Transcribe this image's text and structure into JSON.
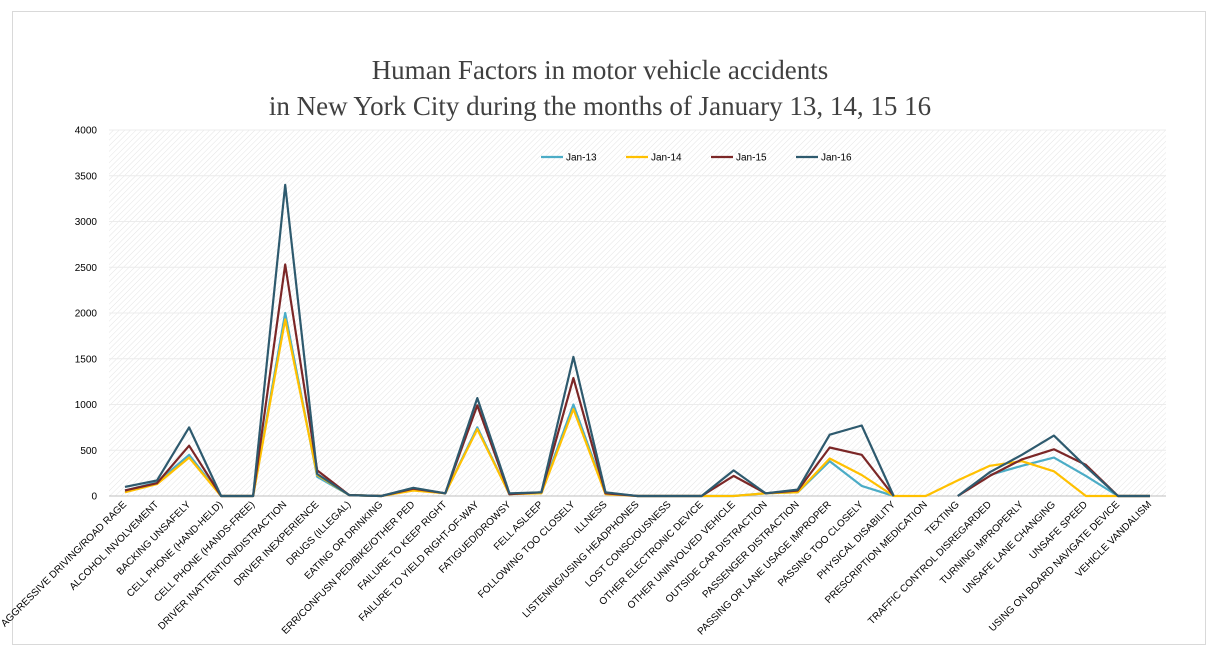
{
  "chart_data": {
    "type": "line",
    "title": [
      "Human Factors in motor vehicle accidents",
      "in New York City during the months of January 13, 14, 15 16"
    ],
    "ylim": [
      0,
      4000
    ],
    "yticks": [
      0,
      500,
      1000,
      1500,
      2000,
      2500,
      3000,
      3500,
      4000
    ],
    "grid": true,
    "legend": "top-center",
    "categories": [
      "AGGRESSIVE DRIVING/ROAD RAGE",
      "ALCOHOL INVOLVEMENT",
      "BACKING UNSAFELY",
      "CELL PHONE (HAND-HELD)",
      "CELL PHONE (HANDS-FREE)",
      "DRIVER INATTENTION/DISTRACTION",
      "DRIVER INEXPERIENCE",
      "DRUGS (ILLEGAL)",
      "EATING OR DRINKING",
      "ERR/CONFUSN PED/BIKE/OTHER PED",
      "FAILURE TO KEEP RIGHT",
      "FAILURE TO YIELD RIGHT-OF-WAY",
      "FATIGUED/DROWSY",
      "FELL ASLEEP",
      "FOLLOWING TOO CLOSELY",
      "ILLNESS",
      "LISTENING/USING HEADPHONES",
      "LOST CONSCIOUSNESS",
      "OTHER ELECTRONIC DEVICE",
      "OTHER UNINVOLVED VEHICLE",
      "OUTSIDE CAR DISTRACTION",
      "PASSENGER DISTRACTION",
      "PASSING OR LANE USAGE IMPROPER",
      "PASSING TOO CLOSELY",
      "PHYSICAL DISABILITY",
      "PRESCRIPTION MEDICATION",
      "TEXTING",
      "TRAFFIC CONTROL DISREGARDED",
      "TURNING IMPROPERLY",
      "UNSAFE LANE CHANGING",
      "UNSAFE SPEED",
      "USING ON BOARD NAVIGATE DEVICE",
      "VEHICLE VANDALISM"
    ],
    "series": [
      {
        "name": "Jan-13",
        "color": "#4bacc6",
        "values": [
          60,
          150,
          450,
          0,
          0,
          2000,
          210,
          10,
          0,
          70,
          30,
          750,
          20,
          40,
          1000,
          30,
          0,
          0,
          0,
          0,
          30,
          40,
          380,
          110,
          0,
          null,
          null,
          230,
          330,
          420,
          220,
          0,
          0
        ]
      },
      {
        "name": "Jan-14",
        "color": "#ffc000",
        "values": [
          40,
          130,
          420,
          0,
          0,
          1930,
          230,
          10,
          0,
          60,
          30,
          730,
          20,
          30,
          950,
          20,
          0,
          0,
          0,
          0,
          30,
          40,
          410,
          230,
          0,
          0,
          170,
          330,
          380,
          270,
          0,
          0,
          0
        ]
      },
      {
        "name": "Jan-15",
        "color": "#7b2727",
        "values": [
          60,
          140,
          550,
          0,
          0,
          2530,
          280,
          10,
          0,
          80,
          30,
          990,
          20,
          40,
          1290,
          30,
          0,
          0,
          0,
          220,
          30,
          60,
          530,
          450,
          0,
          null,
          0,
          220,
          400,
          510,
          340,
          0,
          0
        ]
      },
      {
        "name": "Jan-16",
        "color": "#2e5a6e",
        "values": [
          100,
          170,
          750,
          0,
          0,
          3400,
          240,
          10,
          0,
          90,
          30,
          1070,
          30,
          40,
          1520,
          40,
          0,
          0,
          0,
          280,
          30,
          70,
          670,
          770,
          0,
          null,
          0,
          260,
          450,
          660,
          320,
          0,
          0
        ]
      }
    ]
  }
}
